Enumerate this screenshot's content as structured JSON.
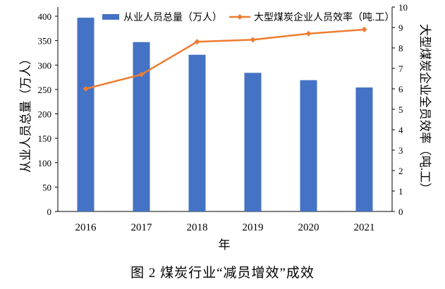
{
  "chart_data": {
    "type": "bar+line",
    "categories": [
      "2016",
      "2017",
      "2018",
      "2019",
      "2020",
      "2021"
    ],
    "series": [
      {
        "name": "从业人员总量（万人）",
        "type": "bar",
        "axis": "left",
        "color": "#4472C4",
        "values": [
          397,
          347,
          321,
          284,
          269,
          254
        ]
      },
      {
        "name": "大型煤炭企业人员效率（吨.工）",
        "type": "line",
        "axis": "right",
        "color": "#ED7D31",
        "marker": "diamond",
        "values": [
          6.0,
          6.7,
          8.3,
          8.4,
          8.7,
          8.9
        ]
      }
    ],
    "xlabel": "年",
    "ylabel": "从业人员总量（万人）",
    "y2label": "大型煤炭企业全员效率（吨.工）",
    "ylim": [
      0,
      400
    ],
    "yticks": [
      "0",
      "50",
      "100",
      "150",
      "200",
      "250",
      "300",
      "350",
      "400"
    ],
    "y2lim": [
      0,
      10
    ],
    "y2ticks": [
      "0",
      "1",
      "2",
      "3",
      "4",
      "5",
      "6",
      "7",
      "8",
      "9",
      "10"
    ],
    "grid": false,
    "legend": "top"
  },
  "caption": "图 2  煤炭行业“减员增效”成效"
}
